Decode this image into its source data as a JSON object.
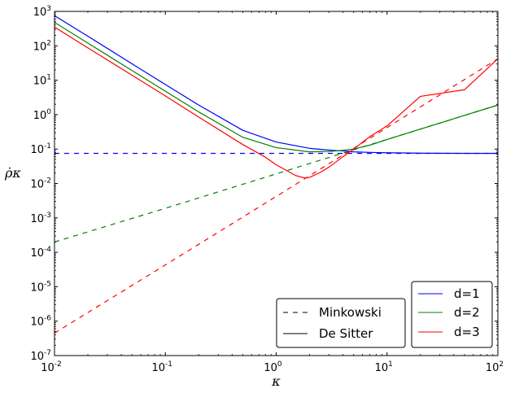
{
  "chart_data": {
    "type": "line",
    "xlabel": "κ",
    "ylabel": "ρ̇κ",
    "xscale": "log",
    "yscale": "log",
    "xlim": [
      0.01,
      100
    ],
    "ylim": [
      1e-07,
      1000
    ],
    "grid": false,
    "x_ticks": [
      {
        "base": "10",
        "exp": "-2"
      },
      {
        "base": "10",
        "exp": "-1"
      },
      {
        "base": "10",
        "exp": "0"
      },
      {
        "base": "10",
        "exp": "1"
      },
      {
        "base": "10",
        "exp": "2"
      }
    ],
    "y_ticks": [
      {
        "base": "10",
        "exp": "-7"
      },
      {
        "base": "10",
        "exp": "-6"
      },
      {
        "base": "10",
        "exp": "-5"
      },
      {
        "base": "10",
        "exp": "-4"
      },
      {
        "base": "10",
        "exp": "-3"
      },
      {
        "base": "10",
        "exp": "-2"
      },
      {
        "base": "10",
        "exp": "-1"
      },
      {
        "base": "10",
        "exp": "0"
      },
      {
        "base": "10",
        "exp": "1"
      },
      {
        "base": "10",
        "exp": "2"
      },
      {
        "base": "10",
        "exp": "3"
      }
    ],
    "colors": {
      "d=1": "#0000ff",
      "d=2": "#008000",
      "d=3": "#ff0000"
    },
    "legend_style": {
      "placement": "bottom-center",
      "entries": [
        {
          "label": "Minkowski",
          "dash": "dashed"
        },
        {
          "label": "De Sitter",
          "dash": "solid"
        }
      ]
    },
    "legend_dimension": {
      "placement": "bottom-right",
      "entries": [
        {
          "label": "d=1",
          "color": "#0000ff"
        },
        {
          "label": "d=2",
          "color": "#008000"
        },
        {
          "label": "d=3",
          "color": "#ff0000"
        }
      ]
    },
    "series": [
      {
        "dimension": "d=1",
        "style": "Minkowski",
        "color": "#0000ff",
        "dash": "dashed",
        "x": [
          0.01,
          0.1,
          1,
          10,
          100
        ],
        "y": [
          0.075,
          0.075,
          0.075,
          0.075,
          0.075
        ]
      },
      {
        "dimension": "d=2",
        "style": "Minkowski",
        "color": "#008000",
        "dash": "dashed",
        "x": [
          0.01,
          0.1,
          1,
          10,
          100
        ],
        "y": [
          0.0002,
          0.0019,
          0.019,
          0.19,
          1.9
        ]
      },
      {
        "dimension": "d=3",
        "style": "Minkowski",
        "color": "#ff0000",
        "dash": "dashed",
        "x": [
          0.01,
          0.1,
          1,
          10,
          100
        ],
        "y": [
          4.5e-07,
          4.3e-05,
          0.0042,
          0.42,
          42
        ]
      },
      {
        "dimension": "d=1",
        "style": "De Sitter",
        "color": "#0000ff",
        "dash": "solid",
        "x": [
          0.01,
          0.02,
          0.05,
          0.1,
          0.2,
          0.5,
          1,
          2,
          3,
          4,
          5,
          7,
          10,
          20,
          50,
          100
        ],
        "y": [
          750,
          190,
          30,
          7.5,
          1.9,
          0.35,
          0.16,
          0.105,
          0.093,
          0.088,
          0.083,
          0.08,
          0.078,
          0.076,
          0.075,
          0.075
        ]
      },
      {
        "dimension": "d=2",
        "style": "De Sitter",
        "color": "#008000",
        "dash": "solid",
        "x": [
          0.01,
          0.02,
          0.05,
          0.1,
          0.2,
          0.5,
          1,
          2,
          3,
          4,
          5,
          7,
          10,
          20,
          50,
          100
        ],
        "y": [
          480,
          120,
          19.2,
          4.8,
          1.2,
          0.22,
          0.11,
          0.083,
          0.085,
          0.092,
          0.1,
          0.13,
          0.19,
          0.38,
          0.95,
          1.9
        ]
      },
      {
        "dimension": "d=3",
        "style": "De Sitter",
        "color": "#ff0000",
        "dash": "solid",
        "x": [
          0.01,
          0.02,
          0.05,
          0.1,
          0.2,
          0.5,
          0.8,
          1,
          1.5,
          1.8,
          2,
          2.5,
          3,
          4,
          5,
          7,
          10,
          20,
          50,
          100
        ],
        "y": [
          350,
          87,
          14,
          3.5,
          0.85,
          0.135,
          0.058,
          0.035,
          0.017,
          0.0145,
          0.015,
          0.021,
          0.03,
          0.06,
          0.1,
          0.23,
          0.47,
          3.4,
          5.3,
          42
        ]
      }
    ]
  }
}
